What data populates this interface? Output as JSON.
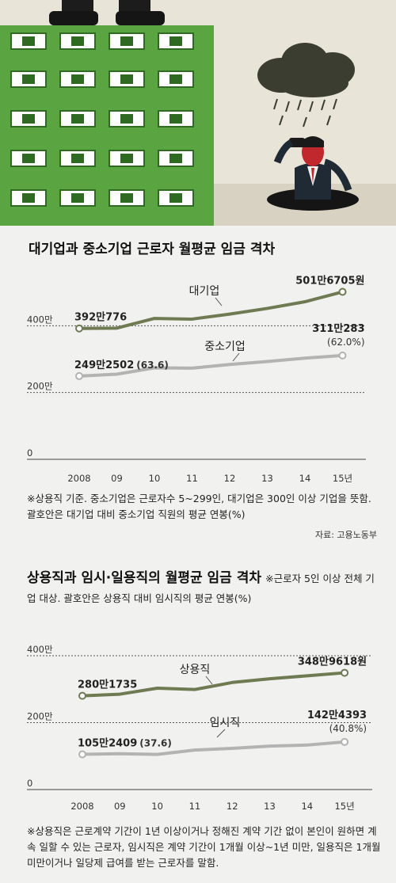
{
  "chart_data": [
    {
      "type": "line",
      "title": "대기업과 중소기업 근로자 월평균 임금 격차",
      "categories": [
        "2008",
        "09",
        "10",
        "11",
        "12",
        "13",
        "14",
        "15년"
      ],
      "yticks": [
        "0",
        "200만",
        "400만"
      ],
      "ylim": [
        0,
        5100000
      ],
      "series": [
        {
          "name": "대기업",
          "color": "#6d7a52",
          "values": [
            3920776,
            3930000,
            4220000,
            4200000,
            4350000,
            4520000,
            4720000,
            5016705
          ],
          "start_label": "392만776",
          "end_label": "501만6705원"
        },
        {
          "name": "중소기업",
          "color": "#b3b3b3",
          "values": [
            2492502,
            2550000,
            2740000,
            2730000,
            2840000,
            2930000,
            3030000,
            3110283
          ],
          "start_label": "249만2502",
          "start_ratio": "(63.6)",
          "end_label": "311만283",
          "end_ratio": "(62.0%)"
        }
      ],
      "note": "※상용직 기준. 중소기업은 근로자수 5~299인, 대기업은 300인 이상 기업을 뜻함. 괄호안은 대기업 대비 중소기업 직원의 평균 연봉(%)",
      "source": "자료: 고용노동부"
    },
    {
      "type": "line",
      "title": "상용직과 임시·일용직의 월평균 임금 격차",
      "subtitle": "※근로자 5인 이상 전체 기업 대상. 괄호안은 상용직 대비 임시직의 평균 연봉(%)",
      "categories": [
        "2008",
        "09",
        "10",
        "11",
        "12",
        "13",
        "14",
        "15년"
      ],
      "yticks": [
        "0",
        "200만",
        "400만"
      ],
      "ylim": [
        0,
        4000000
      ],
      "series": [
        {
          "name": "상용직",
          "color": "#6d7a52",
          "values": [
            2801735,
            2850000,
            3030000,
            2990000,
            3200000,
            3310000,
            3400000,
            3489618
          ],
          "start_label": "280만1735",
          "end_label": "348만9618원"
        },
        {
          "name": "임시직",
          "color": "#b3b3b3",
          "values": [
            1052409,
            1070000,
            1050000,
            1180000,
            1230000,
            1300000,
            1330000,
            1424393
          ],
          "start_label": "105만2409",
          "start_ratio": "(37.6)",
          "end_label": "142만4393",
          "end_ratio": "(40.8%)"
        }
      ],
      "note": "※상용직은 근로계약 기간이 1년 이상이거나 정해진 계약 기간 없이 본인이 원하면 계속 일할 수 있는 근로자, 임시직은 계약 기간이 1개월 이상~1년 미만, 일용직은 1개월 미만이거나 일당제 급여를 받는 근로자를 말함."
    }
  ]
}
